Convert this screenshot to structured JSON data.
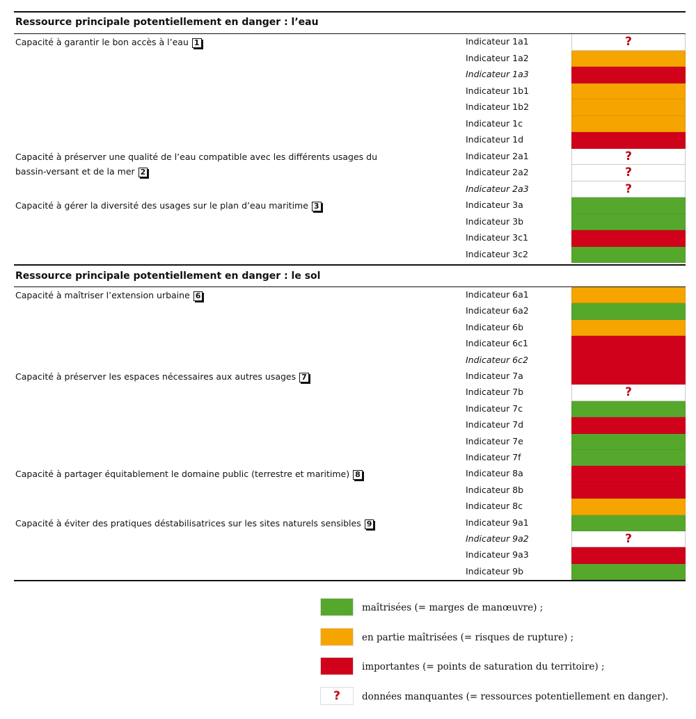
{
  "sections": [
    {
      "title": "Ressource principale potentiellement en danger : l’eau",
      "groups": [
        {
          "label": "Capacité à garantir le bon accès à l’eau",
          "number": "1",
          "indicators": [
            {
              "name": "Indicateur 1a1",
              "color": "#ffffff",
              "mark": "?"
            },
            {
              "name": "Indicateur 1a2",
              "color": "#f5a400"
            },
            {
              "name": "Indicateur 1a3",
              "color": "#d0021b",
              "italic": true
            },
            {
              "name": "Indicateur 1b1",
              "color": "#f5a400"
            },
            {
              "name": "Indicateur 1b2",
              "color": "#f5a400"
            },
            {
              "name": "Indicateur 1c",
              "color": "#f5a400"
            },
            {
              "name": "Indicateur 1d",
              "color": "#d0021b"
            }
          ]
        },
        {
          "label": "Capacité à préserver une qualité de l’eau compatible avec les différents usages du bassin-versant et de la mer",
          "number": "2",
          "indicators": [
            {
              "name": "Indicateur 2a1",
              "color": "#ffffff",
              "mark": "?"
            },
            {
              "name": "Indicateur 2a2",
              "color": "#ffffff",
              "mark": "?"
            },
            {
              "name": "Indicateur 2a3",
              "color": "#ffffff",
              "mark": "?",
              "italic": true
            }
          ]
        },
        {
          "label": "Capacité à gérer la diversité des usages sur le plan d’eau maritime",
          "number": "3",
          "indicators": [
            {
              "name": "Indicateur 3a",
              "color": "#56a82c"
            },
            {
              "name": "Indicateur 3b",
              "color": "#56a82c"
            },
            {
              "name": "Indicateur 3c1",
              "color": "#d0021b"
            },
            {
              "name": "Indicateur 3c2",
              "color": "#56a82c"
            }
          ]
        }
      ]
    },
    {
      "title": "Ressource principale potentiellement en danger : le sol",
      "groups": [
        {
          "label": "Capacité à maîtriser l’extension urbaine",
          "number": "6",
          "indicators": [
            {
              "name": "Indicateur 6a1",
              "color": "#f5a400"
            },
            {
              "name": "Indicateur 6a2",
              "color": "#56a82c"
            },
            {
              "name": "Indicateur 6b",
              "color": "#f5a400"
            },
            {
              "name": "Indicateur 6c1",
              "color": "#d0021b"
            },
            {
              "name": "Indicateur 6c2",
              "color": "#d0021b",
              "italic": true
            }
          ]
        },
        {
          "label": "Capacité à préserver les espaces nécessaires aux autres usages",
          "number": "7",
          "indicators": [
            {
              "name": "Indicateur 7a",
              "color": "#d0021b"
            },
            {
              "name": "Indicateur 7b",
              "color": "#ffffff",
              "mark": "?"
            },
            {
              "name": "Indicateur 7c",
              "color": "#56a82c"
            },
            {
              "name": "Indicateur 7d",
              "color": "#d0021b"
            },
            {
              "name": "Indicateur 7e",
              "color": "#56a82c"
            },
            {
              "name": "Indicateur 7f",
              "color": "#56a82c"
            }
          ]
        },
        {
          "label": "Capacité à partager équitablement le domaine public (terrestre et maritime)",
          "number": "8",
          "indicators": [
            {
              "name": "Indicateur 8a",
              "color": "#d0021b"
            },
            {
              "name": "Indicateur 8b",
              "color": "#d0021b"
            },
            {
              "name": "Indicateur 8c",
              "color": "#f5a400"
            }
          ]
        },
        {
          "label": "Capacité à éviter des pratiques déstabilisatrices sur les sites naturels sensibles",
          "number": "9",
          "indicators": [
            {
              "name": "Indicateur 9a1",
              "color": "#56a82c"
            },
            {
              "name": "Indicateur 9a2",
              "color": "#ffffff",
              "mark": "?",
              "italic": true
            },
            {
              "name": "Indicateur 9a3",
              "color": "#d0021b"
            },
            {
              "name": "Indicateur 9b",
              "color": "#56a82c"
            }
          ]
        }
      ]
    }
  ],
  "legend": [
    {
      "color": "#56a82c",
      "label": "maîtrisées (= marges de manœuvre) ;"
    },
    {
      "color": "#f5a400",
      "label": "en partie maîtrisées (= risques de rupture) ;"
    },
    {
      "color": "#d0021b",
      "label": "importantes (= points de saturation du territoire) ;"
    },
    {
      "color": "#ffffff",
      "mark": "?",
      "label": "données manquantes (= ressources potentiellement en danger)."
    }
  ]
}
